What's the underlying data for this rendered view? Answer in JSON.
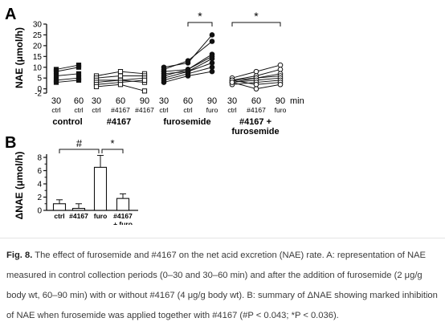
{
  "chart_data": [
    {
      "panel": "A",
      "type": "line",
      "ylabel": "NAE (μmol/h)",
      "ylim": [
        -2,
        30
      ],
      "yticks": [
        "30",
        "25",
        "20",
        "15",
        "10",
        "5",
        "0",
        "-2"
      ],
      "x_unit": "min",
      "groups": [
        {
          "name": "control",
          "marker": "filled-square",
          "x": [
            "30",
            "60"
          ],
          "x_sub": [
            "ctrl",
            "ctrl"
          ],
          "lines": [
            [
              9,
              11
            ],
            [
              8,
              10
            ],
            [
              6,
              7
            ],
            [
              4,
              5
            ],
            [
              3,
              4
            ]
          ]
        },
        {
          "name": "#4167",
          "marker": "open-square",
          "x": [
            "30",
            "60",
            "90"
          ],
          "x_sub": [
            "ctrl",
            "#4167",
            "#4167"
          ],
          "lines": [
            [
              6,
              8,
              7
            ],
            [
              5,
              6,
              6
            ],
            [
              4,
              4,
              5
            ],
            [
              3,
              4,
              3
            ],
            [
              2,
              3,
              4
            ],
            [
              1,
              2,
              -1
            ]
          ]
        },
        {
          "name": "furosemide",
          "marker": "filled-circle",
          "x": [
            "30",
            "60",
            "90"
          ],
          "x_sub": [
            "ctrl",
            "ctrl",
            "furo"
          ],
          "lines": [
            [
              10,
              12,
              25
            ],
            [
              9,
              13,
              22
            ],
            [
              8,
              9,
              16
            ],
            [
              7,
              8,
              14
            ],
            [
              6,
              9,
              15
            ],
            [
              5,
              8,
              12
            ],
            [
              4,
              7,
              10
            ],
            [
              3,
              6,
              8
            ]
          ]
        },
        {
          "name": "#4167 + furosemide",
          "marker": "open-circle",
          "x": [
            "30",
            "60",
            "90"
          ],
          "x_sub": [
            "ctrl",
            "#4167",
            "furo"
          ],
          "lines": [
            [
              5,
              8,
              11
            ],
            [
              4,
              6,
              9
            ],
            [
              4,
              5,
              7
            ],
            [
              3,
              5,
              6
            ],
            [
              3,
              4,
              5
            ],
            [
              2,
              3,
              4
            ],
            [
              4,
              2,
              3
            ],
            [
              3,
              0,
              2
            ]
          ]
        }
      ],
      "annotations": [
        {
          "label": "*",
          "between": "furosemide 60–90"
        },
        {
          "label": "*",
          "between": "#4167 + furosemide 30–90"
        }
      ]
    },
    {
      "panel": "B",
      "type": "bar",
      "ylabel": "ΔNAE (μmol/h)",
      "ylim": [
        0,
        8
      ],
      "yticks": [
        "8",
        "6",
        "4",
        "2",
        "0"
      ],
      "categories": [
        "ctrl",
        "#4167",
        "furo",
        "#4167\n+ furo"
      ],
      "values": [
        1.0,
        0.3,
        6.5,
        1.8
      ],
      "errors": [
        0.6,
        0.7,
        1.8,
        0.7
      ],
      "annotations": [
        {
          "label": "#",
          "between": [
            "ctrl",
            "furo"
          ]
        },
        {
          "label": "*",
          "between": [
            "furo",
            "#4167\n+ furo"
          ]
        }
      ]
    }
  ],
  "figure": {
    "panel_a_label": "A",
    "panel_b_label": "B",
    "a_group_labels": [
      "control",
      "#4167",
      "furosemide",
      "#4167 +",
      "furosemide"
    ],
    "a_unit": "min"
  },
  "caption": {
    "label": "Fig. 8.",
    "text": " The effect of furosemide and #4167 on the net acid excretion (NAE) rate. A: representation of NAE measured in control collection periods (0–30 and 30–60 min) and after the addition of furosemide (2 μg/g body wt, 60–90 min) with or without #4167 (4 μg/g body wt). B: summary of ΔNAE showing marked inhibition of NAE when furosemide was applied together with #4167 (#P < 0.043; *P < 0.036)."
  }
}
